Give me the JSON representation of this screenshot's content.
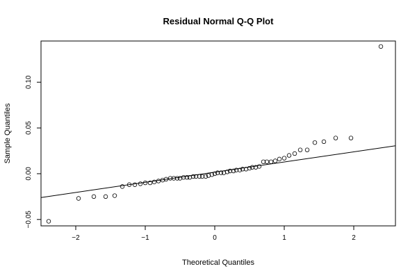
{
  "chart_data": {
    "type": "scatter",
    "title": "Residual Normal Q-Q Plot",
    "xlabel": "Theoretical Quantiles",
    "ylabel": "Sample Quantiles",
    "xlim": [
      -2.5,
      2.6
    ],
    "ylim": [
      -0.057,
      0.145
    ],
    "xticks": [
      -2,
      -1,
      0,
      1,
      2
    ],
    "xtick_labels": [
      "−2",
      "−1",
      "0",
      "1",
      "2"
    ],
    "yticks": [
      -0.05,
      0.0,
      0.05,
      0.1
    ],
    "ytick_labels": [
      "−0.05",
      "0.00",
      "0.05",
      "0.10"
    ],
    "grid": false,
    "reference_line": {
      "slope": 0.0111,
      "intercept": 0.0017
    },
    "series": [
      {
        "points": [
          [
            -2.39,
            -0.052
          ],
          [
            -1.96,
            -0.027
          ],
          [
            -1.74,
            -0.025
          ],
          [
            -1.57,
            -0.025
          ],
          [
            -1.44,
            -0.024
          ],
          [
            -1.33,
            -0.014
          ],
          [
            -1.23,
            -0.012
          ],
          [
            -1.15,
            -0.012
          ],
          [
            -1.07,
            -0.011
          ],
          [
            -1.0,
            -0.01
          ],
          [
            -0.93,
            -0.01
          ],
          [
            -0.87,
            -0.009
          ],
          [
            -0.81,
            -0.008
          ],
          [
            -0.75,
            -0.007
          ],
          [
            -0.7,
            -0.006
          ],
          [
            -0.64,
            -0.005
          ],
          [
            -0.59,
            -0.005
          ],
          [
            -0.54,
            -0.005
          ],
          [
            -0.5,
            -0.005
          ],
          [
            -0.45,
            -0.004
          ],
          [
            -0.4,
            -0.004
          ],
          [
            -0.36,
            -0.004
          ],
          [
            -0.31,
            -0.003
          ],
          [
            -0.27,
            -0.003
          ],
          [
            -0.22,
            -0.003
          ],
          [
            -0.18,
            -0.003
          ],
          [
            -0.13,
            -0.003
          ],
          [
            -0.09,
            -0.002
          ],
          [
            -0.04,
            -0.001
          ],
          [
            0.0,
            0.0
          ],
          [
            0.04,
            0.001
          ],
          [
            0.09,
            0.001
          ],
          [
            0.13,
            0.001
          ],
          [
            0.18,
            0.002
          ],
          [
            0.22,
            0.003
          ],
          [
            0.27,
            0.003
          ],
          [
            0.31,
            0.004
          ],
          [
            0.36,
            0.004
          ],
          [
            0.4,
            0.005
          ],
          [
            0.45,
            0.005
          ],
          [
            0.5,
            0.006
          ],
          [
            0.54,
            0.007
          ],
          [
            0.59,
            0.007
          ],
          [
            0.64,
            0.008
          ],
          [
            0.7,
            0.013
          ],
          [
            0.75,
            0.013
          ],
          [
            0.81,
            0.013
          ],
          [
            0.87,
            0.014
          ],
          [
            0.93,
            0.016
          ],
          [
            1.0,
            0.017
          ],
          [
            1.07,
            0.02
          ],
          [
            1.15,
            0.022
          ],
          [
            1.23,
            0.026
          ],
          [
            1.33,
            0.026
          ],
          [
            1.44,
            0.034
          ],
          [
            1.57,
            0.035
          ],
          [
            1.74,
            0.039
          ],
          [
            1.96,
            0.039
          ],
          [
            2.39,
            0.139
          ]
        ]
      }
    ]
  }
}
